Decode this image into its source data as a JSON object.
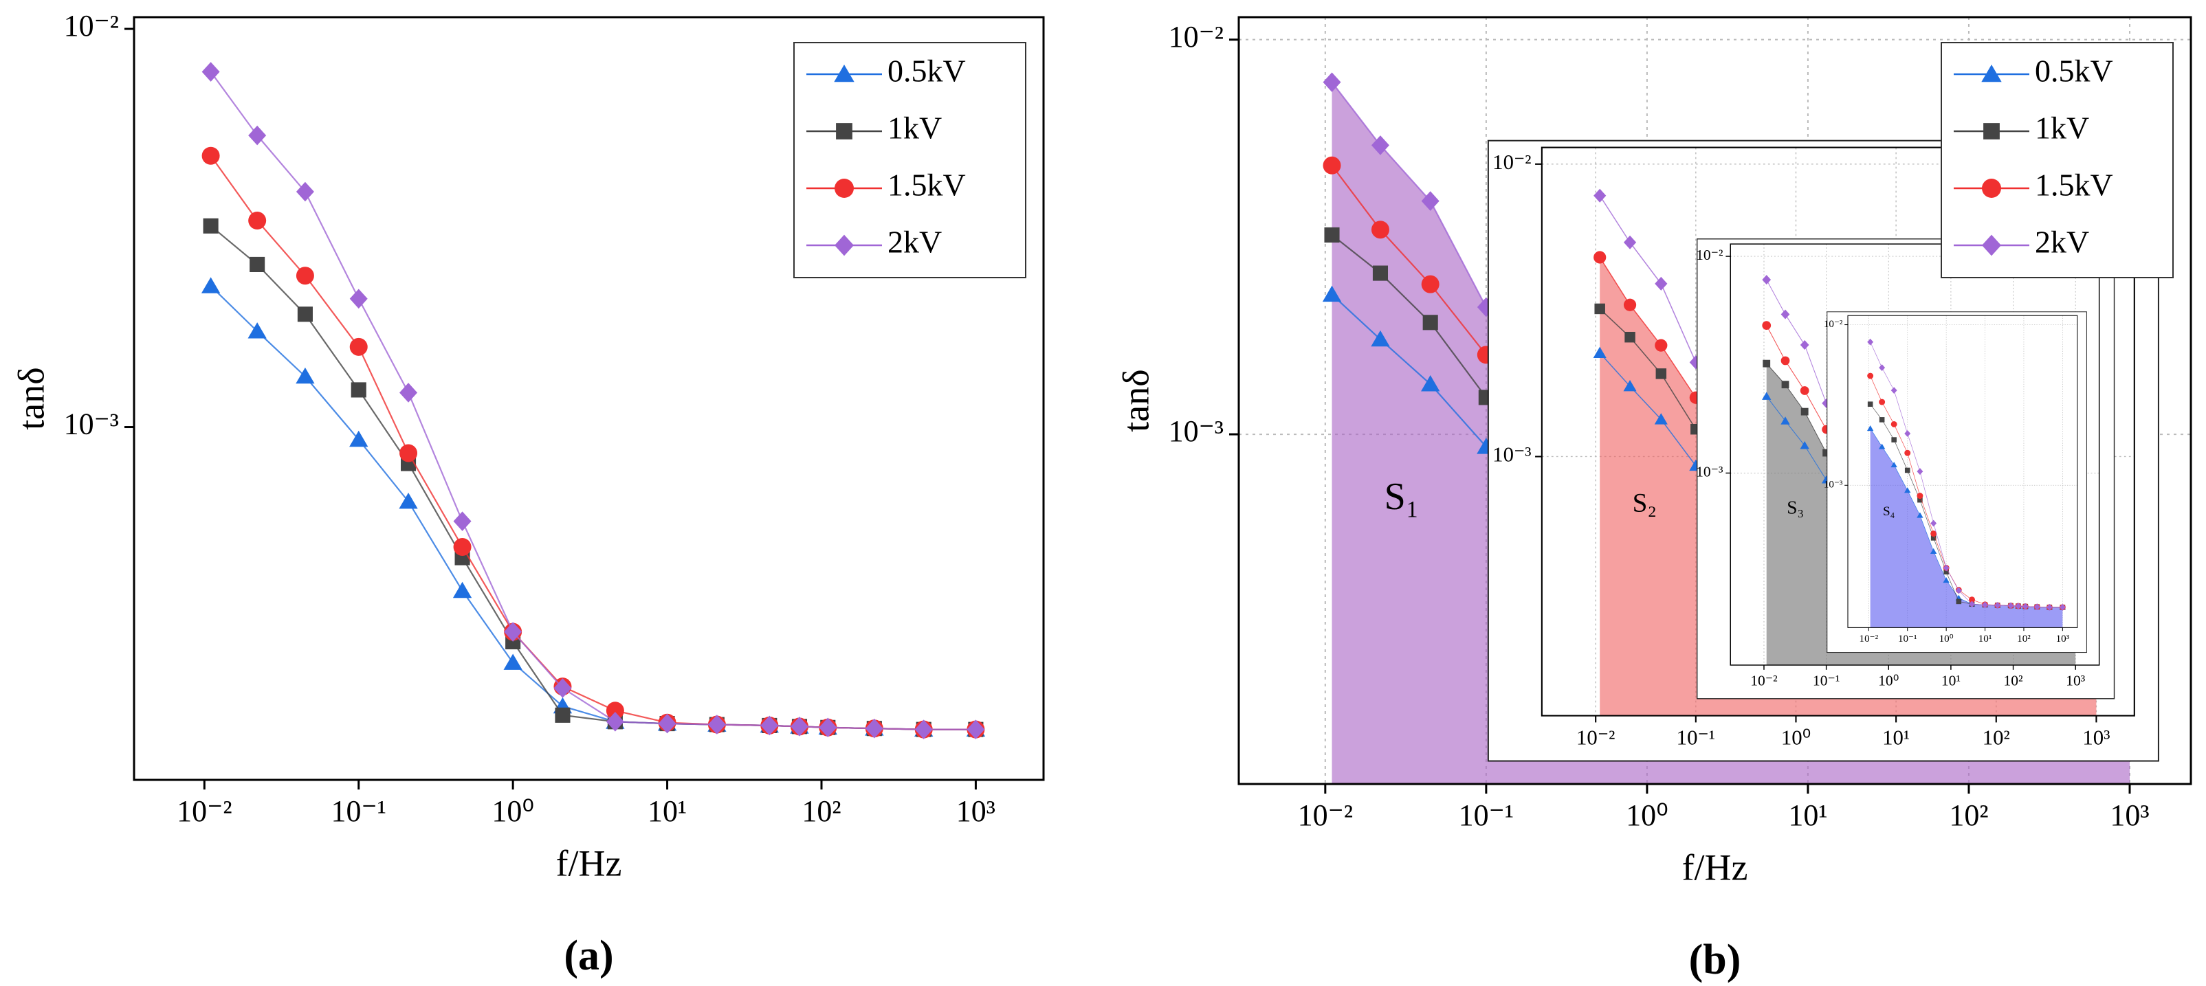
{
  "chart_data": [
    {
      "type": "line",
      "caption": "(a)",
      "x_label": "f/Hz",
      "y_label": "tanδ",
      "log_x": true,
      "log_y": true,
      "grid": false,
      "legend": "upper right",
      "xlim": [
        0.0035,
        2750
      ],
      "ylim": [
        0.00013,
        0.0107
      ],
      "xticks": [
        {
          "value": 0.01,
          "label": "10⁻²"
        },
        {
          "value": 0.1,
          "label": "10⁻¹"
        },
        {
          "value": 1,
          "label": "10⁰"
        },
        {
          "value": 10,
          "label": "10¹"
        },
        {
          "value": 100,
          "label": "10²"
        },
        {
          "value": 1000,
          "label": "10³"
        }
      ],
      "yticks": [
        {
          "value": 0.001,
          "label": "10⁻³"
        },
        {
          "value": 0.01,
          "label": "10⁻²"
        }
      ],
      "x": [
        0.011,
        0.022,
        0.045,
        0.1,
        0.21,
        0.47,
        1,
        2.1,
        4.6,
        10,
        21,
        46,
        72,
        110,
        220,
        460,
        1000
      ],
      "series": [
        {
          "name": "0.5kV",
          "color": "#1f6fe0",
          "marker": "triangle",
          "values": [
            0.00226,
            0.00174,
            0.00134,
            0.00093,
            0.00065,
            0.000388,
            0.000256,
            0.000199,
            0.000182,
            0.00018,
            0.000179,
            0.000178,
            0.000177,
            0.000176,
            0.000175,
            0.000174,
            0.000174
          ]
        },
        {
          "name": "1kV",
          "color": "#444444",
          "marker": "square",
          "values": [
            0.0032,
            0.00256,
            0.00192,
            0.00124,
            0.00081,
            0.00047,
            0.000289,
            0.000189,
            0.000182,
            0.00018,
            0.000179,
            0.000178,
            0.000177,
            0.000176,
            0.000175,
            0.000174,
            0.000174
          ]
        },
        {
          "name": "1.5kV",
          "color": "#f03030",
          "marker": "circle",
          "values": [
            0.0048,
            0.0033,
            0.0024,
            0.00159,
            0.00086,
            0.0005,
            0.000306,
            0.000223,
            0.000194,
            0.000181,
            0.000179,
            0.000178,
            0.000177,
            0.000176,
            0.000175,
            0.000174,
            0.000174
          ]
        },
        {
          "name": "2kV",
          "color": "#a066d6",
          "marker": "diamond",
          "values": [
            0.0078,
            0.0054,
            0.0039,
            0.0021,
            0.00122,
            0.00058,
            0.000306,
            0.000221,
            0.000182,
            0.00018,
            0.000179,
            0.000178,
            0.000177,
            0.000176,
            0.000175,
            0.000174,
            0.000174
          ]
        }
      ]
    },
    {
      "type": "line",
      "caption": "(b)",
      "x_label": "f/Hz",
      "y_label": "tanδ",
      "log_x": true,
      "log_y": true,
      "grid": true,
      "legend": "upper right",
      "xlim": [
        0.0029,
        2400
      ],
      "ylim": [
        0.00013,
        0.0114
      ],
      "xticks": [
        {
          "value": 0.01,
          "label": "10⁻²"
        },
        {
          "value": 0.1,
          "label": "10⁻¹"
        },
        {
          "value": 1,
          "label": "10⁰"
        },
        {
          "value": 10,
          "label": "10¹"
        },
        {
          "value": 100,
          "label": "10²"
        },
        {
          "value": 1000,
          "label": "10³"
        }
      ],
      "yticks": [
        {
          "value": 0.001,
          "label": "10⁻³"
        },
        {
          "value": 0.01,
          "label": "10⁻²"
        }
      ],
      "x": [
        0.011,
        0.022,
        0.045,
        0.1,
        0.21,
        0.47,
        1,
        2.1,
        4.6,
        10,
        21,
        46,
        72,
        110,
        220,
        460,
        1000
      ],
      "series": [
        {
          "name": "0.5kV",
          "color": "#1f6fe0",
          "marker": "triangle",
          "area_label": "S₄",
          "area_color": "#5a5af0",
          "values": [
            0.00226,
            0.00174,
            0.00134,
            0.00093,
            0.00065,
            0.000388,
            0.000256,
            0.000199,
            0.000182,
            0.00018,
            0.000179,
            0.000178,
            0.000177,
            0.000176,
            0.000175,
            0.000174,
            0.000174
          ]
        },
        {
          "name": "1kV",
          "color": "#444444",
          "marker": "square",
          "area_label": "S₃",
          "area_color": "#707070",
          "values": [
            0.0032,
            0.00256,
            0.00192,
            0.00124,
            0.00081,
            0.00047,
            0.000289,
            0.000189,
            0.000182,
            0.00018,
            0.000179,
            0.000178,
            0.000177,
            0.000176,
            0.000175,
            0.000174,
            0.000174
          ]
        },
        {
          "name": "1.5kV",
          "color": "#f03030",
          "marker": "circle",
          "area_label": "S₂",
          "area_color": "#f06060",
          "values": [
            0.0048,
            0.0033,
            0.0024,
            0.00159,
            0.00086,
            0.0005,
            0.000306,
            0.000223,
            0.000194,
            0.000181,
            0.000179,
            0.000178,
            0.000177,
            0.000176,
            0.000175,
            0.000174,
            0.000174
          ]
        },
        {
          "name": "2kV",
          "color": "#a066d6",
          "marker": "diamond",
          "area_label": "S₁",
          "area_color": "#a862c4",
          "values": [
            0.0078,
            0.0054,
            0.0039,
            0.0021,
            0.00122,
            0.00058,
            0.000306,
            0.000221,
            0.000182,
            0.00018,
            0.000179,
            0.000178,
            0.000177,
            0.000176,
            0.000175,
            0.000174,
            0.000174
          ]
        }
      ]
    }
  ]
}
